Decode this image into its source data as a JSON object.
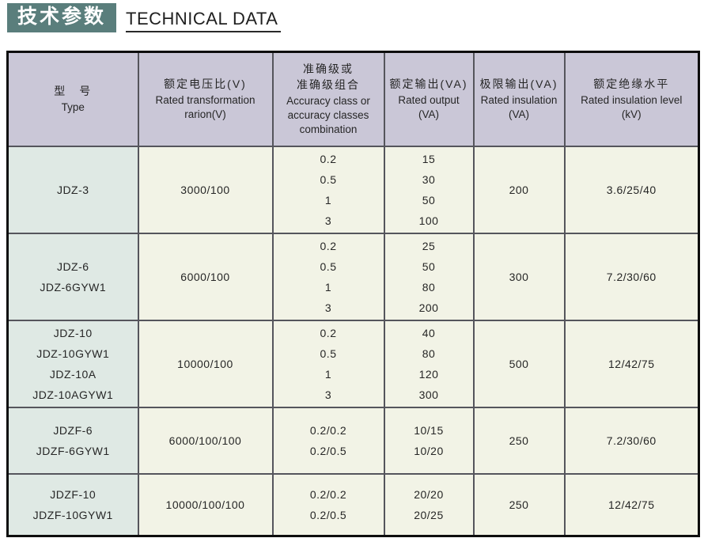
{
  "title": {
    "zh": "技术参数",
    "en": "TECHNICAL DATA"
  },
  "colors": {
    "title_bg": "#5a7e7c",
    "header_bg": "#cac7d7",
    "type_col_bg": "#dfe9e4",
    "cell_bg": "#f2f3e6"
  },
  "table": {
    "headers": [
      {
        "zh": "型　号",
        "en": "Type"
      },
      {
        "zh": "额定电压比(V)",
        "en": "Rated transformation\nrarion(V)"
      },
      {
        "zh": "准确级或\n准确级组合",
        "en": "Accuracy class or\naccuracy classes\ncombination"
      },
      {
        "zh": "额定输出(VA)",
        "en": "Rated output\n(VA)"
      },
      {
        "zh": "极限输出(VA)",
        "en": "Rated insulation\n(VA)"
      },
      {
        "zh": "额定绝缘水平",
        "en": "Rated insulation level\n(kV)"
      }
    ],
    "rows": [
      {
        "types": [
          "JDZ-3"
        ],
        "ratio": "3000/100",
        "accuracy": [
          "0.2",
          "0.5",
          "1",
          "3"
        ],
        "rated_output": [
          "15",
          "30",
          "50",
          "100"
        ],
        "limit_output": "200",
        "insulation_level": "3.6/25/40"
      },
      {
        "types": [
          "JDZ-6",
          "JDZ-6GYW1"
        ],
        "ratio": "6000/100",
        "accuracy": [
          "0.2",
          "0.5",
          "1",
          "3"
        ],
        "rated_output": [
          "25",
          "50",
          "80",
          "200"
        ],
        "limit_output": "300",
        "insulation_level": "7.2/30/60"
      },
      {
        "types": [
          "JDZ-10",
          "JDZ-10GYW1",
          "JDZ-10A",
          "JDZ-10AGYW1"
        ],
        "ratio": "10000/100",
        "accuracy": [
          "0.2",
          "0.5",
          "1",
          "3"
        ],
        "rated_output": [
          "40",
          "80",
          "120",
          "300"
        ],
        "limit_output": "500",
        "insulation_level": "12/42/75"
      },
      {
        "types": [
          "JDZF-6",
          "JDZF-6GYW1"
        ],
        "ratio": "6000/100/100",
        "accuracy": [
          "0.2/0.2",
          "0.2/0.5"
        ],
        "rated_output": [
          "10/15",
          "10/20"
        ],
        "limit_output": "250",
        "insulation_level": "7.2/30/60"
      },
      {
        "types": [
          "JDZF-10",
          "JDZF-10GYW1"
        ],
        "ratio": "10000/100/100",
        "accuracy": [
          "0.2/0.2",
          "0.2/0.5"
        ],
        "rated_output": [
          "20/20",
          "20/25"
        ],
        "limit_output": "250",
        "insulation_level": "12/42/75"
      }
    ]
  }
}
